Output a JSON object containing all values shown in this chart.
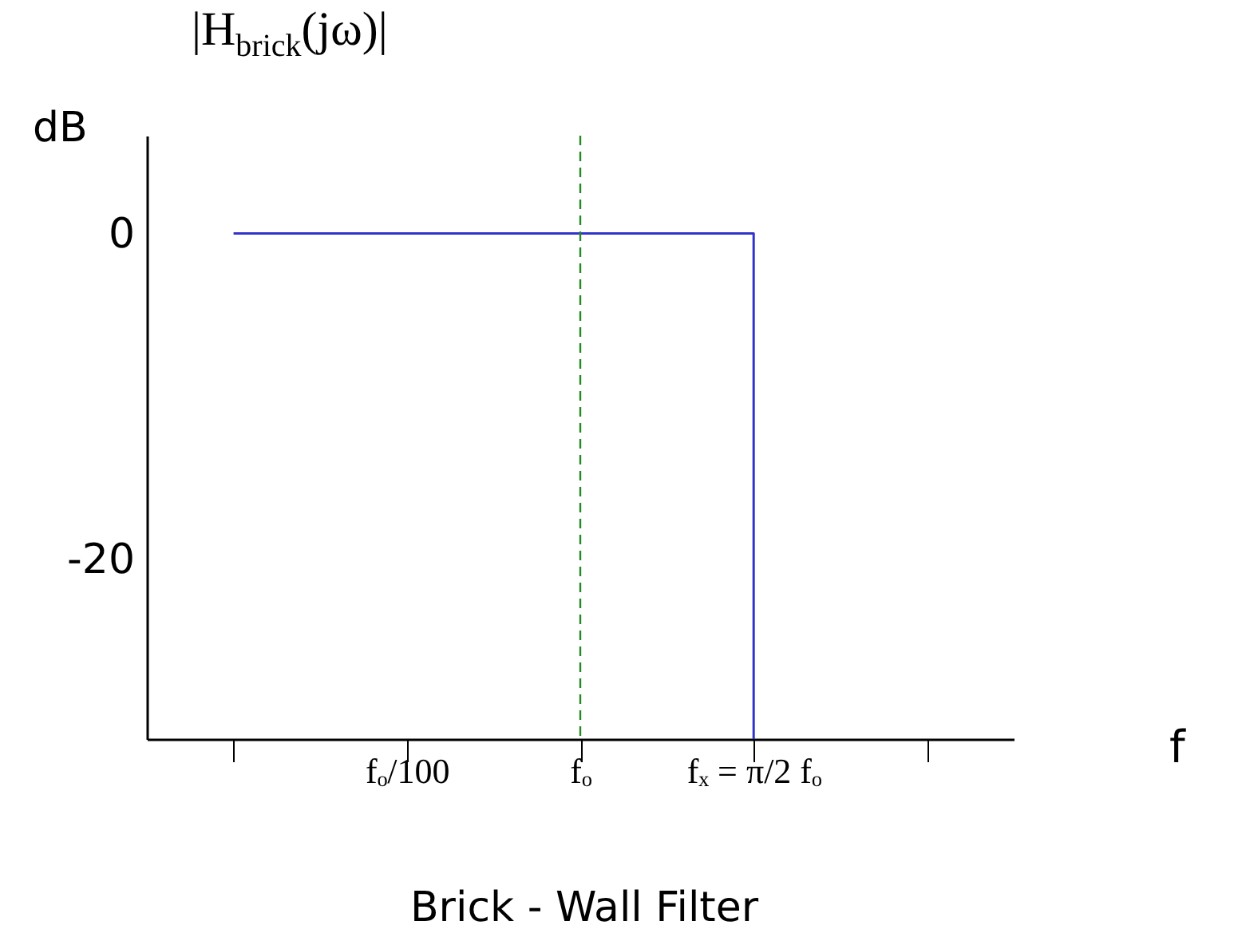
{
  "chart_data": {
    "type": "step",
    "title": "Brick - Wall Filter",
    "ylabel": "dB",
    "xlabel": "f",
    "annotations": [
      "|H$_{brick}$(jω)|"
    ],
    "categories": [
      null,
      "fₒ/100",
      "fₒ",
      "fₓ = π/2 fₒ",
      null
    ],
    "ylim": [
      -31,
      6
    ],
    "yticks": [
      0,
      -20
    ],
    "series": [
      {
        "color": "#3333cc",
        "values": [
          0,
          0,
          0,
          -31,
          null
        ]
      }
    ],
    "ref_lines": [
      {
        "axis": "x",
        "value": "fₒ",
        "color": "#228b22",
        "line_style": "dashed"
      }
    ],
    "grid": false,
    "line_style": "solid",
    "marker": "none"
  }
}
